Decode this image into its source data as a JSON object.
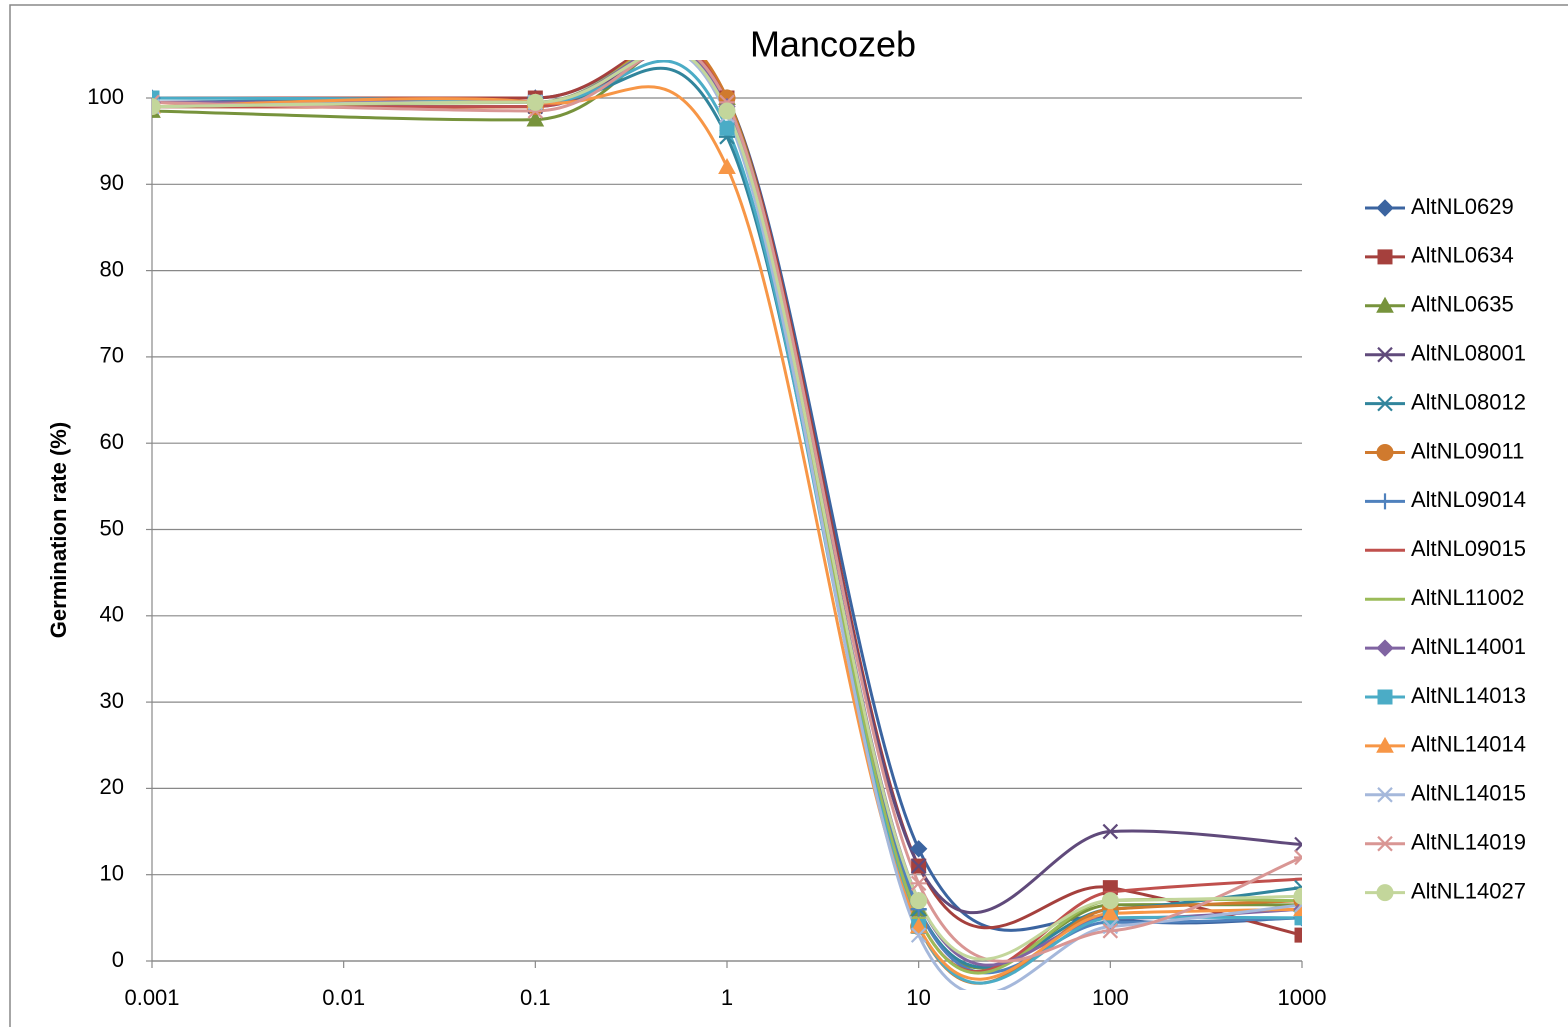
{
  "chart_data": {
    "type": "line",
    "title": "Mancozeb",
    "y_label": "Germination rate (%)",
    "x": [
      0.001,
      0.1,
      1,
      10,
      100,
      1000
    ],
    "xlim": [
      0.001,
      1000
    ],
    "xticks": [
      0.001,
      0.01,
      0.1,
      1,
      10,
      100,
      1000
    ],
    "xscale": "log",
    "ylim": [
      0,
      100
    ],
    "yticks": [
      0,
      10,
      20,
      30,
      40,
      50,
      60,
      70,
      80,
      90,
      100
    ],
    "grid": true,
    "legend": "right",
    "smooth": true,
    "series": [
      {
        "name": "AltNL0629",
        "color": "#3B64A0",
        "marker": "diamond",
        "values": [
          100,
          100,
          100,
          13,
          5,
          5
        ]
      },
      {
        "name": "AltNL0634",
        "color": "#A5403D",
        "marker": "square",
        "values": [
          100,
          100,
          100,
          11,
          8.5,
          3
        ]
      },
      {
        "name": "AltNL0635",
        "color": "#77933C",
        "marker": "triangle",
        "values": [
          98.5,
          97.5,
          100,
          6,
          6.5,
          6.5
        ]
      },
      {
        "name": "AltNL08001",
        "color": "#604A7B",
        "marker": "x",
        "values": [
          99,
          99,
          99,
          11,
          15,
          13.5
        ]
      },
      {
        "name": "AltNL08012",
        "color": "#31859C",
        "marker": "star",
        "values": [
          99.5,
          99.5,
          95.5,
          6,
          6,
          8.5
        ]
      },
      {
        "name": "AltNL09011",
        "color": "#D07A2E",
        "marker": "circle",
        "values": [
          99,
          99,
          100,
          4,
          6,
          7
        ]
      },
      {
        "name": "AltNL09014",
        "color": "#4F81BD",
        "marker": "plus",
        "values": [
          99.5,
          99.5,
          99,
          6,
          4.5,
          5
        ]
      },
      {
        "name": "AltNL09015",
        "color": "#C0504D",
        "marker": "dash",
        "values": [
          99,
          99,
          99.5,
          5,
          8,
          9.5
        ]
      },
      {
        "name": "AltNL11002",
        "color": "#9BBB59",
        "marker": "dash",
        "values": [
          99,
          99.5,
          99,
          5,
          7,
          7
        ]
      },
      {
        "name": "AltNL14001",
        "color": "#8064A2",
        "marker": "diamond",
        "values": [
          99.5,
          99.5,
          99,
          7,
          5,
          6
        ]
      },
      {
        "name": "AltNL14013",
        "color": "#4BACC6",
        "marker": "square",
        "values": [
          100,
          99.5,
          96.5,
          4,
          5,
          5
        ]
      },
      {
        "name": "AltNL14014",
        "color": "#F79646",
        "marker": "triangle",
        "values": [
          99,
          99.5,
          92,
          4,
          5.5,
          6
        ]
      },
      {
        "name": "AltNL14015",
        "color": "#A5B8DB",
        "marker": "x",
        "values": [
          99,
          99.5,
          98,
          3,
          4,
          6.5
        ]
      },
      {
        "name": "AltNL14019",
        "color": "#D99694",
        "marker": "star",
        "values": [
          99.5,
          98.5,
          99.5,
          9,
          3.5,
          12
        ]
      },
      {
        "name": "AltNL14027",
        "color": "#C3D69B",
        "marker": "circle",
        "values": [
          99,
          99.5,
          98.5,
          7,
          7,
          7.5
        ]
      }
    ]
  }
}
